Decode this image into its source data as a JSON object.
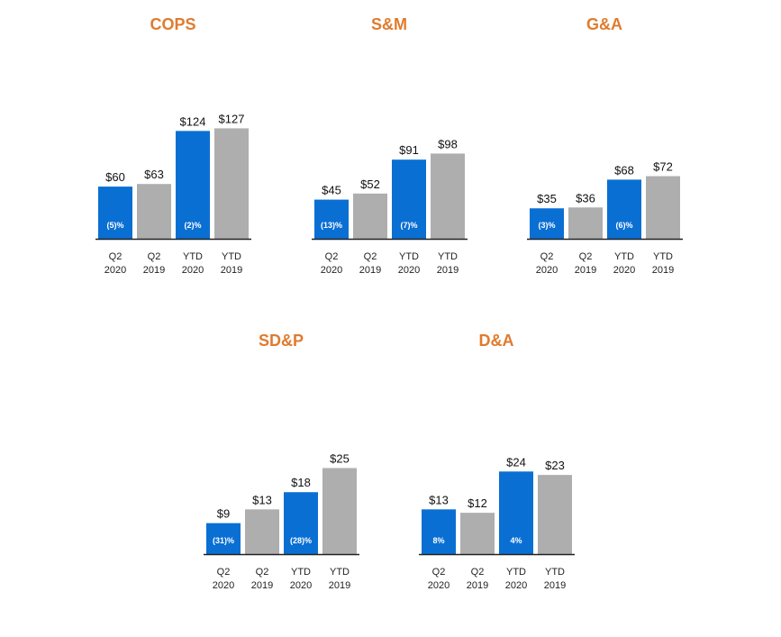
{
  "colors": {
    "title": "#E07B2E",
    "current": "#0A6FD3",
    "prior": "#AEAEAE",
    "axis": "#222222"
  },
  "chart_data": [
    {
      "type": "bar",
      "title": "COPS",
      "categories": [
        [
          "Q2",
          "2020"
        ],
        [
          "Q2",
          "2019"
        ],
        [
          "YTD",
          "2020"
        ],
        [
          "YTD",
          "2019"
        ]
      ],
      "values": [
        60,
        63,
        124,
        127
      ],
      "value_labels": [
        "$60",
        "$63",
        "$124",
        "$127"
      ],
      "change_labels": [
        "(5)%",
        "",
        "(2)%",
        ""
      ],
      "series_kind": [
        "current",
        "prior",
        "current",
        "prior"
      ],
      "ylim": [
        0,
        130
      ]
    },
    {
      "type": "bar",
      "title": "S&M",
      "categories": [
        [
          "Q2",
          "2020"
        ],
        [
          "Q2",
          "2019"
        ],
        [
          "YTD",
          "2020"
        ],
        [
          "YTD",
          "2019"
        ]
      ],
      "values": [
        45,
        52,
        91,
        98
      ],
      "value_labels": [
        "$45",
        "$52",
        "$91",
        "$98"
      ],
      "change_labels": [
        "(13)%",
        "",
        "(7)%",
        ""
      ],
      "series_kind": [
        "current",
        "prior",
        "current",
        "prior"
      ],
      "ylim": [
        0,
        130
      ]
    },
    {
      "type": "bar",
      "title": "G&A",
      "categories": [
        [
          "Q2",
          "2020"
        ],
        [
          "Q2",
          "2019"
        ],
        [
          "YTD",
          "2020"
        ],
        [
          "YTD",
          "2019"
        ]
      ],
      "values": [
        35,
        36,
        68,
        72
      ],
      "value_labels": [
        "$35",
        "$36",
        "$68",
        "$72"
      ],
      "change_labels": [
        "(3)%",
        "",
        "(6)%",
        ""
      ],
      "series_kind": [
        "current",
        "prior",
        "current",
        "prior"
      ],
      "ylim": [
        0,
        130
      ]
    },
    {
      "type": "bar",
      "title": "SD&P",
      "categories": [
        [
          "Q2",
          "2020"
        ],
        [
          "Q2",
          "2019"
        ],
        [
          "YTD",
          "2020"
        ],
        [
          "YTD",
          "2019"
        ]
      ],
      "values": [
        9,
        13,
        18,
        25
      ],
      "value_labels": [
        "$9",
        "$13",
        "$18",
        "$25"
      ],
      "change_labels": [
        "(31)%",
        "",
        "(28)%",
        ""
      ],
      "series_kind": [
        "current",
        "prior",
        "current",
        "prior"
      ],
      "ylim": [
        0,
        25
      ]
    },
    {
      "type": "bar",
      "title": "D&A",
      "categories": [
        [
          "Q2",
          "2020"
        ],
        [
          "Q2",
          "2019"
        ],
        [
          "YTD",
          "2020"
        ],
        [
          "YTD",
          "2019"
        ]
      ],
      "values": [
        13,
        12,
        24,
        23
      ],
      "value_labels": [
        "$13",
        "$12",
        "$24",
        "$23"
      ],
      "change_labels": [
        "8%",
        "",
        "4%",
        ""
      ],
      "series_kind": [
        "current",
        "prior",
        "current",
        "prior"
      ],
      "ylim": [
        0,
        25
      ]
    }
  ]
}
